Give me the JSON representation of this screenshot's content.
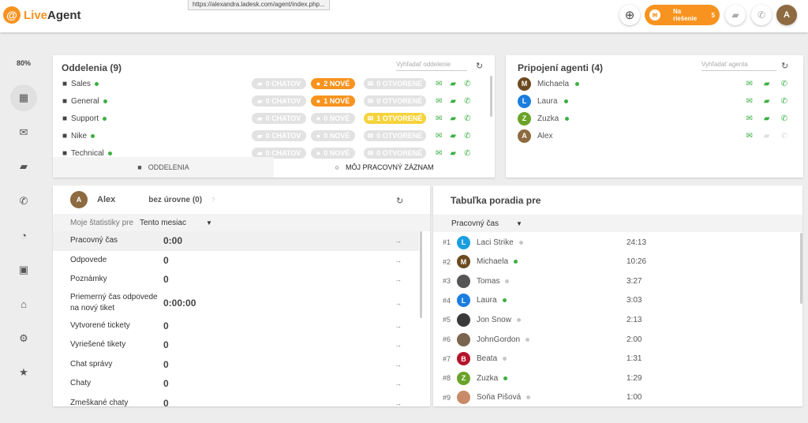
{
  "app": {
    "logo_prefix": "Live",
    "logo_suffix": "Agent",
    "url_tooltip": "https://alexandra.ladesk.com/agent/index.php..."
  },
  "topbar": {
    "status_label": "Na riešenie",
    "status_count": "5",
    "user_initial": "A",
    "accent": "#f7931e"
  },
  "sidebar": {
    "zoom": "80%",
    "items": [
      {
        "icon": "dashboard-icon",
        "glyph": "▦",
        "active": true
      },
      {
        "icon": "mail-icon",
        "glyph": "✉"
      },
      {
        "icon": "chat-icon",
        "glyph": "▰"
      },
      {
        "icon": "phone-icon",
        "glyph": "✆"
      },
      {
        "icon": "reports-icon",
        "glyph": "◔"
      },
      {
        "icon": "contacts-icon",
        "glyph": "▣"
      },
      {
        "icon": "knowledgebase-icon",
        "glyph": "⌂"
      },
      {
        "icon": "settings-icon",
        "glyph": "⚙"
      },
      {
        "icon": "star-icon",
        "glyph": "★"
      }
    ]
  },
  "departments": {
    "title": "Oddelenia (9)",
    "search_placeholder": "Vyhľadať oddelenie",
    "rows": [
      {
        "name": "Sales",
        "chats": "0 CHATOV",
        "new": "2 NOVÉ",
        "new_active": true,
        "open": "0 OTVORENÉ",
        "open_active": false
      },
      {
        "name": "General",
        "chats": "0 CHATOV",
        "new": "1 NOVÉ",
        "new_active": true,
        "open": "0 OTVORENÉ",
        "open_active": false
      },
      {
        "name": "Support",
        "chats": "0 CHATOV",
        "new": "0 NOVÉ",
        "new_active": false,
        "open": "1 OTVORENÉ",
        "open_active": true
      },
      {
        "name": "Nike",
        "chats": "0 CHATOV",
        "new": "0 NOVÉ",
        "new_active": false,
        "open": "0 OTVORENÉ",
        "open_active": false
      },
      {
        "name": "Technical",
        "chats": "0 CHATOV",
        "new": "0 NOVÉ",
        "new_active": false,
        "open": "0 OTVORENÉ",
        "open_active": false
      }
    ],
    "tabs": {
      "departments": "ODDELENIA",
      "worklog": "MÔJ PRACOVNÝ ZÁZNAM"
    }
  },
  "agents": {
    "title": "Pripojení agenti (4)",
    "search_placeholder": "Vyhľadať agenta",
    "rows": [
      {
        "initial": "M",
        "name": "Michaela",
        "color": "#6b4a1f",
        "online": true,
        "chat": true
      },
      {
        "initial": "L",
        "name": "Laura",
        "color": "#1a7ee0",
        "online": true,
        "chat": true
      },
      {
        "initial": "Z",
        "name": "Zuzka",
        "color": "#6aa329",
        "online": true,
        "chat": true
      },
      {
        "initial": "A",
        "name": "Alex",
        "color": "#8d6a40",
        "online": false,
        "chat": false
      }
    ]
  },
  "stats": {
    "initial": "A",
    "name": "Alex",
    "level": "bez úrovne (0)",
    "help": "?",
    "filter_label": "Moje štatistiky pre",
    "period": "Tento mesiac",
    "rows": [
      {
        "label": "Pracovný čas",
        "value": "0:00"
      },
      {
        "label": "Odpovede",
        "value": "0"
      },
      {
        "label": "Poznámky",
        "value": "0"
      },
      {
        "label": "Priemerný čas odpovede na nový tiket",
        "value": "0:00:00"
      },
      {
        "label": "Vytvorené tickety",
        "value": "0"
      },
      {
        "label": "Vyriešené tikety",
        "value": "0"
      },
      {
        "label": "Chat správy",
        "value": "0"
      },
      {
        "label": "Chaty",
        "value": "0"
      },
      {
        "label": "Zmeškané chaty",
        "value": "0"
      }
    ]
  },
  "leaderboard": {
    "title": "Tabuľka poradia pre",
    "metric": "Pracovný čas",
    "rows": [
      {
        "rank": "#1",
        "initial": "L",
        "name": "Laci Strike",
        "color": "#1a9ee0",
        "online": false,
        "time": "24:13"
      },
      {
        "rank": "#2",
        "initial": "M",
        "name": "Michaela",
        "color": "#6b4a1f",
        "online": true,
        "time": "10:26"
      },
      {
        "rank": "#3",
        "initial": "",
        "name": "Tomas",
        "color": "#555",
        "online": false,
        "time": "3:27"
      },
      {
        "rank": "#4",
        "initial": "L",
        "name": "Laura",
        "color": "#1a7ee0",
        "online": true,
        "time": "3:03"
      },
      {
        "rank": "#5",
        "initial": "",
        "name": "Jon Snow",
        "color": "#3a3a3a",
        "online": false,
        "time": "2:13"
      },
      {
        "rank": "#6",
        "initial": "",
        "name": "JohnGordon",
        "color": "#7a6650",
        "online": false,
        "time": "2:00"
      },
      {
        "rank": "#7",
        "initial": "B",
        "name": "Beata",
        "color": "#b5122b",
        "online": false,
        "time": "1:31"
      },
      {
        "rank": "#8",
        "initial": "Z",
        "name": "Zuzka",
        "color": "#6aa329",
        "online": true,
        "time": "1:29"
      },
      {
        "rank": "#9",
        "initial": "",
        "name": "Soňa Pišová",
        "color": "#c98a6a",
        "online": false,
        "time": "1:00"
      }
    ]
  }
}
